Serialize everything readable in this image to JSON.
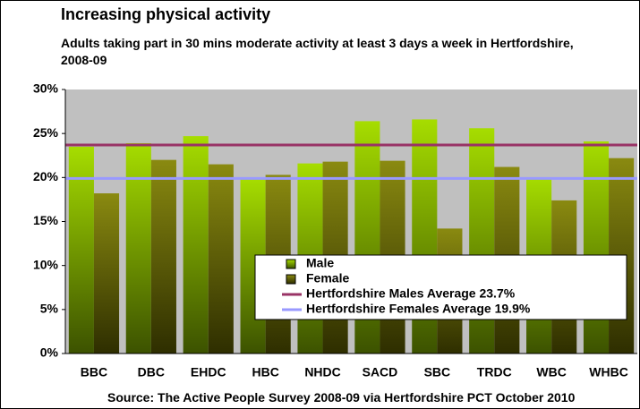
{
  "chart_data": {
    "type": "bar",
    "title": "Increasing physical activity",
    "subtitle": "Adults taking part in 30 mins moderate activity at least 3 days a week in Hertfordshire, 2008-09",
    "source": "Source: The Active People Survey 2008-09 via Hertfordshire PCT October 2010",
    "categories": [
      "BBC",
      "DBC",
      "EHDC",
      "HBC",
      "NHDC",
      "SACD",
      "SBC",
      "TRDC",
      "WBC",
      "WHBC"
    ],
    "series": [
      {
        "name": "Male",
        "color": "#99cc00",
        "values": [
          23.5,
          23.9,
          24.7,
          19.8,
          21.6,
          26.4,
          26.6,
          25.6,
          20.0,
          24.1
        ]
      },
      {
        "name": "Female",
        "color": "#808000",
        "values": [
          18.2,
          22.0,
          21.5,
          20.3,
          21.8,
          21.9,
          14.2,
          21.2,
          17.4,
          22.2
        ]
      }
    ],
    "reference_lines": [
      {
        "name": "Hertfordshire Males Average 23.7%",
        "value": 23.7,
        "color": "#993366"
      },
      {
        "name": "Hertfordshire Females Average 19.9%",
        "value": 19.9,
        "color": "#9999ff"
      }
    ],
    "ylim": [
      0,
      30
    ],
    "yticks": [
      {
        "value": 0,
        "label": "0%"
      },
      {
        "value": 5,
        "label": "5%"
      },
      {
        "value": 10,
        "label": "10%"
      },
      {
        "value": 15,
        "label": "15%"
      },
      {
        "value": 20,
        "label": "20%"
      },
      {
        "value": 25,
        "label": "25%"
      },
      {
        "value": 30,
        "label": "30%"
      }
    ],
    "plot_background": "#c0c0c0"
  }
}
